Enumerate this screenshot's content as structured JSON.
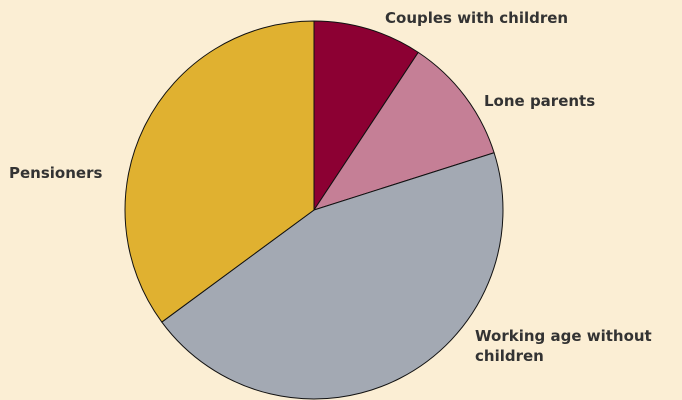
{
  "colors": {
    "background": "#fbeed4",
    "outline": "#111111",
    "label": "#333333"
  },
  "chart_data": {
    "type": "pie",
    "title": "",
    "start_angle_deg": 0,
    "direction": "clockwise",
    "legend": "none",
    "slices": [
      {
        "label": "Couples with children",
        "label_lines": [
          "Couples with children"
        ],
        "value": 9.3,
        "color": "#8c0033"
      },
      {
        "label": "Lone parents",
        "label_lines": [
          "Lone parents"
        ],
        "value": 10.8,
        "color": "#c57f96"
      },
      {
        "label": "Working age without children",
        "label_lines": [
          "Working age without",
          "children"
        ],
        "value": 44.8,
        "color": "#a3a9b3"
      },
      {
        "label": "Pensioners",
        "label_lines": [
          "Pensioners"
        ],
        "value": 35.1,
        "color": "#e0b130"
      }
    ]
  }
}
